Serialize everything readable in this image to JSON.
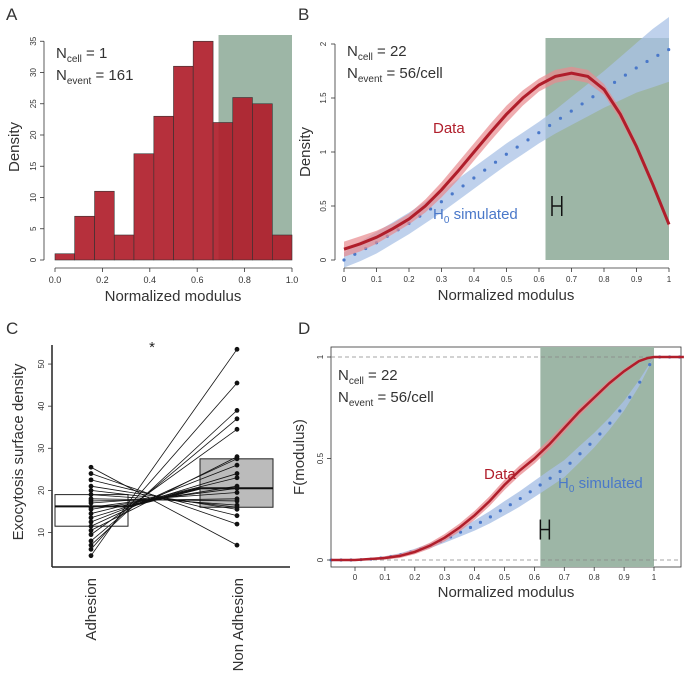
{
  "colors": {
    "red": "#b01e2b",
    "red_band": "#e88a8f",
    "blue": "#4a78c9",
    "blue_band": "#a9c1e6",
    "green": "#9db6a6",
    "gray_box": "#bbbbbb",
    "black": "#222222"
  },
  "panels": {
    "A": {
      "letter": "A"
    },
    "B": {
      "letter": "B"
    },
    "C": {
      "letter": "C"
    },
    "D": {
      "letter": "D"
    }
  },
  "chart_data": [
    {
      "panel": "A",
      "type": "bar",
      "title": "",
      "xlabel": "Normalized modulus",
      "ylabel": "Density",
      "xlim": [
        0,
        1
      ],
      "ylim": [
        0,
        36
      ],
      "bin_edges": [
        0.0,
        0.083,
        0.167,
        0.25,
        0.333,
        0.417,
        0.5,
        0.583,
        0.667,
        0.75,
        0.833,
        0.917,
        1.0
      ],
      "values": [
        1,
        7,
        11,
        4,
        17,
        23,
        31,
        35,
        22,
        26,
        25,
        4
      ],
      "xticks": [
        "0.0",
        "0.2",
        "0.4",
        "0.6",
        "0.8",
        "1.0"
      ],
      "xtick_values": [
        0,
        0.2,
        0.4,
        0.6,
        0.8,
        1.0
      ],
      "yticks": [
        "0",
        "5",
        "10",
        "15",
        "20",
        "25",
        "30",
        "35"
      ],
      "ytick_values": [
        0,
        5,
        10,
        15,
        20,
        25,
        30,
        35
      ],
      "shaded_region": [
        0.69,
        1.0
      ],
      "annotation": {
        "ncell": "1",
        "nevent": "161"
      }
    },
    {
      "panel": "B",
      "type": "line",
      "xlabel": "Normalized modulus",
      "ylabel": "Density",
      "xlim": [
        0,
        1
      ],
      "ylim": [
        0,
        2
      ],
      "xticks": [
        "0",
        "0.1",
        "0.2",
        "0.3",
        "0.4",
        "0.5",
        "0.6",
        "0.7",
        "0.8",
        "0.9",
        "1"
      ],
      "xtick_values": [
        0,
        0.1,
        0.2,
        0.3,
        0.4,
        0.5,
        0.6,
        0.7,
        0.8,
        0.9,
        1
      ],
      "yticks": [
        "0",
        "0.5",
        "1",
        "1.5",
        "2"
      ],
      "ytick_values": [
        0,
        0.5,
        1,
        1.5,
        2
      ],
      "shaded_region": [
        0.62,
        1.0
      ],
      "series": [
        {
          "name": "Data",
          "x": [
            0,
            0.05,
            0.1,
            0.15,
            0.2,
            0.25,
            0.3,
            0.35,
            0.4,
            0.45,
            0.5,
            0.55,
            0.6,
            0.65,
            0.7,
            0.75,
            0.8,
            0.85,
            0.9,
            0.95,
            1.0
          ],
          "y": [
            0.1,
            0.15,
            0.21,
            0.29,
            0.38,
            0.5,
            0.65,
            0.82,
            1.0,
            1.18,
            1.35,
            1.5,
            1.62,
            1.7,
            1.73,
            1.7,
            1.58,
            1.35,
            1.05,
            0.7,
            0.33
          ],
          "band": [
            0.07,
            0.07,
            0.06,
            0.05,
            0.05,
            0.06,
            0.07,
            0.08,
            0.08,
            0.08,
            0.08,
            0.07,
            0.06,
            0.06,
            0.06,
            0.06,
            0.05,
            0.05,
            0.04,
            0.04,
            0.03
          ]
        },
        {
          "name": "H0 simulated",
          "x": [
            0,
            0.05,
            0.1,
            0.15,
            0.2,
            0.25,
            0.3,
            0.35,
            0.4,
            0.45,
            0.5,
            0.55,
            0.6,
            0.65,
            0.7,
            0.75,
            0.8,
            0.85,
            0.9,
            0.95,
            1.0
          ],
          "y": [
            0.0,
            0.08,
            0.16,
            0.25,
            0.34,
            0.44,
            0.54,
            0.65,
            0.76,
            0.87,
            0.98,
            1.08,
            1.18,
            1.28,
            1.38,
            1.48,
            1.58,
            1.68,
            1.78,
            1.87,
            1.95
          ],
          "band": [
            0.07,
            0.09,
            0.1,
            0.1,
            0.1,
            0.1,
            0.1,
            0.1,
            0.1,
            0.1,
            0.1,
            0.1,
            0.1,
            0.11,
            0.13,
            0.15,
            0.17,
            0.2,
            0.23,
            0.27,
            0.3
          ]
        }
      ],
      "errorbar": {
        "x": [
          0.64,
          0.67
        ],
        "y": 0.5
      },
      "annotation": {
        "ncell": "22",
        "nevent": "56/cell"
      },
      "labels": {
        "data": "Data",
        "h0_main": "H",
        "h0_sub": "0",
        "h0_rest": " simulated"
      }
    },
    {
      "panel": "C",
      "type": "scatter",
      "ylabel": "Exocytosis surface density",
      "categories": [
        "Adhesion",
        "Non Adhesion"
      ],
      "ylim": [
        3,
        55
      ],
      "yticks": [
        "10",
        "20",
        "30",
        "40",
        "50"
      ],
      "ytick_values": [
        10,
        20,
        30,
        40,
        50
      ],
      "significance": "*",
      "paired": [
        [
          4.5,
          53.5
        ],
        [
          6,
          45.5
        ],
        [
          7,
          39
        ],
        [
          8,
          37
        ],
        [
          9.5,
          34.5
        ],
        [
          10.5,
          28
        ],
        [
          11.5,
          27.5
        ],
        [
          12.5,
          26
        ],
        [
          13.5,
          24
        ],
        [
          14.5,
          23
        ],
        [
          15.5,
          21
        ],
        [
          16,
          20.5
        ],
        [
          17,
          19.5
        ],
        [
          17.5,
          18
        ],
        [
          18,
          17.5
        ],
        [
          19,
          16.5
        ],
        [
          20,
          16
        ],
        [
          21,
          15.5
        ],
        [
          22.5,
          14
        ],
        [
          24,
          12
        ],
        [
          25.5,
          7
        ]
      ],
      "boxes": [
        {
          "name": "Adhesion",
          "q1": 11.5,
          "median": 16.2,
          "q3": 19
        },
        {
          "name": "Non Adhesion",
          "q1": 16,
          "median": 20.5,
          "q3": 27.5
        }
      ]
    },
    {
      "panel": "D",
      "type": "line",
      "xlabel": "Normalized modulus",
      "ylabel": "F(modulus)",
      "xlim": [
        -0.08,
        1.1
      ],
      "ylim": [
        0,
        1
      ],
      "xticks": [
        "0",
        "0.1",
        "0.2",
        "0.3",
        "0.4",
        "0.5",
        "0.6",
        "0.7",
        "0.8",
        "0.9",
        "1"
      ],
      "xtick_values": [
        0,
        0.1,
        0.2,
        0.3,
        0.4,
        0.5,
        0.6,
        0.7,
        0.8,
        0.9,
        1
      ],
      "yticks": [
        "0",
        "0.5",
        "1"
      ],
      "ytick_values": [
        0,
        0.5,
        1
      ],
      "shaded_region": [
        0.62,
        1.0
      ],
      "series": [
        {
          "name": "Data",
          "x": [
            -0.08,
            0,
            0.05,
            0.1,
            0.15,
            0.2,
            0.25,
            0.3,
            0.35,
            0.4,
            0.45,
            0.5,
            0.55,
            0.6,
            0.65,
            0.7,
            0.75,
            0.8,
            0.85,
            0.9,
            0.95,
            0.98,
            1.0,
            1.1
          ],
          "y": [
            0,
            0,
            0.005,
            0.01,
            0.02,
            0.04,
            0.07,
            0.11,
            0.16,
            0.22,
            0.29,
            0.37,
            0.44,
            0.5,
            0.57,
            0.65,
            0.73,
            0.8,
            0.87,
            0.93,
            0.98,
            0.995,
            1,
            1
          ],
          "band": [
            0,
            0,
            0.005,
            0.008,
            0.01,
            0.012,
            0.015,
            0.018,
            0.02,
            0.022,
            0.024,
            0.025,
            0.025,
            0.025,
            0.024,
            0.022,
            0.02,
            0.018,
            0.015,
            0.012,
            0.008,
            0.004,
            0,
            0
          ]
        },
        {
          "name": "H0 simulated",
          "x": [
            -0.08,
            0,
            0.05,
            0.1,
            0.15,
            0.2,
            0.25,
            0.3,
            0.35,
            0.4,
            0.45,
            0.5,
            0.55,
            0.6,
            0.65,
            0.7,
            0.75,
            0.8,
            0.85,
            0.9,
            0.95,
            1.0,
            1.1
          ],
          "y": [
            0,
            0,
            0.004,
            0.012,
            0.025,
            0.045,
            0.07,
            0.1,
            0.135,
            0.17,
            0.21,
            0.255,
            0.3,
            0.35,
            0.4,
            0.45,
            0.52,
            0.59,
            0.67,
            0.76,
            0.87,
            1,
            1
          ],
          "band": [
            0,
            0,
            0.003,
            0.006,
            0.008,
            0.01,
            0.012,
            0.015,
            0.02,
            0.025,
            0.03,
            0.035,
            0.038,
            0.04,
            0.042,
            0.042,
            0.04,
            0.036,
            0.03,
            0.024,
            0.015,
            0,
            0
          ]
        }
      ],
      "errorbar": {
        "x": [
          0.62,
          0.65
        ],
        "y": 0.15
      },
      "annotation": {
        "ncell": "22",
        "nevent": "56/cell"
      },
      "labels": {
        "data": "Data",
        "h0_main": "H",
        "h0_sub": "0",
        "h0_rest": " simulated"
      }
    }
  ]
}
